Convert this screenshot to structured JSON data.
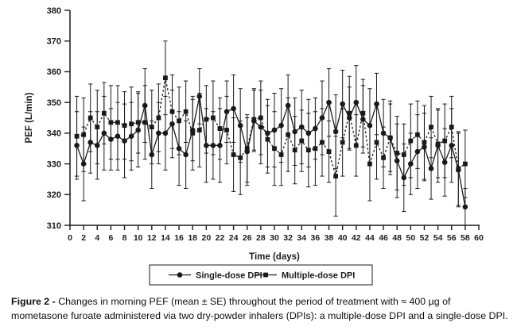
{
  "figure": {
    "caption_label": "Figure 2 - ",
    "caption_text": "Changes in morning PEF (mean ± SE) throughout the period of treatment with ≈ 400 µg of mometasone furoate administered via two dry-powder inhalers (DPIs): a multiple-dose DPI and a single-dose DPI."
  },
  "chart_data": {
    "type": "line",
    "title": "",
    "xlabel": "Time (days)",
    "ylabel": "PEF (L/min)",
    "xlim": [
      0,
      60
    ],
    "ylim": [
      310,
      380
    ],
    "x_tick_step": 2,
    "y_tick_step": 10,
    "grid": false,
    "legend_position": "bottom-center",
    "error_bars": "mean ± SE",
    "line_color": "#1a1a1a",
    "x": [
      1,
      2,
      3,
      4,
      5,
      6,
      7,
      8,
      9,
      10,
      11,
      12,
      13,
      14,
      15,
      16,
      17,
      18,
      19,
      20,
      21,
      22,
      23,
      24,
      25,
      26,
      27,
      28,
      29,
      30,
      31,
      32,
      33,
      34,
      35,
      36,
      37,
      38,
      39,
      40,
      41,
      42,
      43,
      44,
      45,
      46,
      47,
      48,
      49,
      50,
      51,
      52,
      53,
      54,
      55,
      56,
      57,
      58
    ],
    "series": [
      {
        "name": "Single-dose DPI",
        "marker": "circle",
        "line": "solid",
        "values": [
          336,
          330,
          337,
          336,
          340,
          338,
          339,
          337.5,
          339,
          341,
          349,
          333,
          340,
          340,
          343,
          335,
          333,
          341,
          352,
          336,
          336,
          336,
          347,
          348,
          342.5,
          334,
          344,
          342,
          340,
          341,
          342.5,
          349,
          340.5,
          342,
          340,
          341.5,
          345,
          350,
          340.5,
          349.5,
          345,
          350,
          344.5,
          342.5,
          349.5,
          340,
          338.5,
          331,
          325.5,
          330,
          334,
          335.5,
          328.5,
          336,
          330.5,
          336,
          328,
          316
        ],
        "se": [
          11,
          12,
          10,
          11,
          12,
          10,
          11,
          12,
          11,
          12,
          12,
          11,
          10,
          12,
          11,
          12,
          11,
          10,
          9,
          12,
          11,
          12,
          10,
          11,
          12,
          11,
          10,
          12,
          11,
          12,
          12,
          10,
          11,
          12,
          11,
          10,
          12,
          11,
          12,
          11,
          10,
          12,
          11,
          12,
          10,
          11,
          12,
          12,
          11,
          10,
          12,
          11,
          10,
          12,
          11,
          12,
          12,
          6
        ]
      },
      {
        "name": "Multiple-dose DPI",
        "marker": "square",
        "line": "dashed",
        "values": [
          339,
          339.5,
          345,
          342,
          346.5,
          343.5,
          343.5,
          342.5,
          343,
          343.5,
          343.5,
          342,
          345,
          358,
          347,
          344,
          347,
          340,
          341,
          344.5,
          345,
          341.5,
          341,
          333,
          332,
          335,
          344.5,
          345,
          338,
          335,
          333,
          339.5,
          334.5,
          337.5,
          334.5,
          335,
          337,
          334,
          326,
          337,
          346.5,
          336,
          346.5,
          330,
          337,
          332,
          338.5,
          333.5,
          333,
          337.5,
          339.5,
          337,
          342,
          336.5,
          337.5,
          342,
          328.5,
          330
        ],
        "se": [
          13,
          12,
          11,
          12,
          10,
          12,
          12,
          11,
          12,
          10,
          12,
          12,
          11,
          12,
          12,
          11,
          10,
          12,
          12,
          11,
          12,
          10,
          11,
          12,
          12,
          11,
          10,
          12,
          11,
          12,
          10,
          12,
          11,
          10,
          12,
          12,
          11,
          10,
          13,
          11,
          12,
          10,
          11,
          12,
          12,
          10,
          11,
          12,
          10,
          12,
          11,
          12,
          10,
          11,
          12,
          10,
          12,
          11
        ]
      }
    ]
  }
}
